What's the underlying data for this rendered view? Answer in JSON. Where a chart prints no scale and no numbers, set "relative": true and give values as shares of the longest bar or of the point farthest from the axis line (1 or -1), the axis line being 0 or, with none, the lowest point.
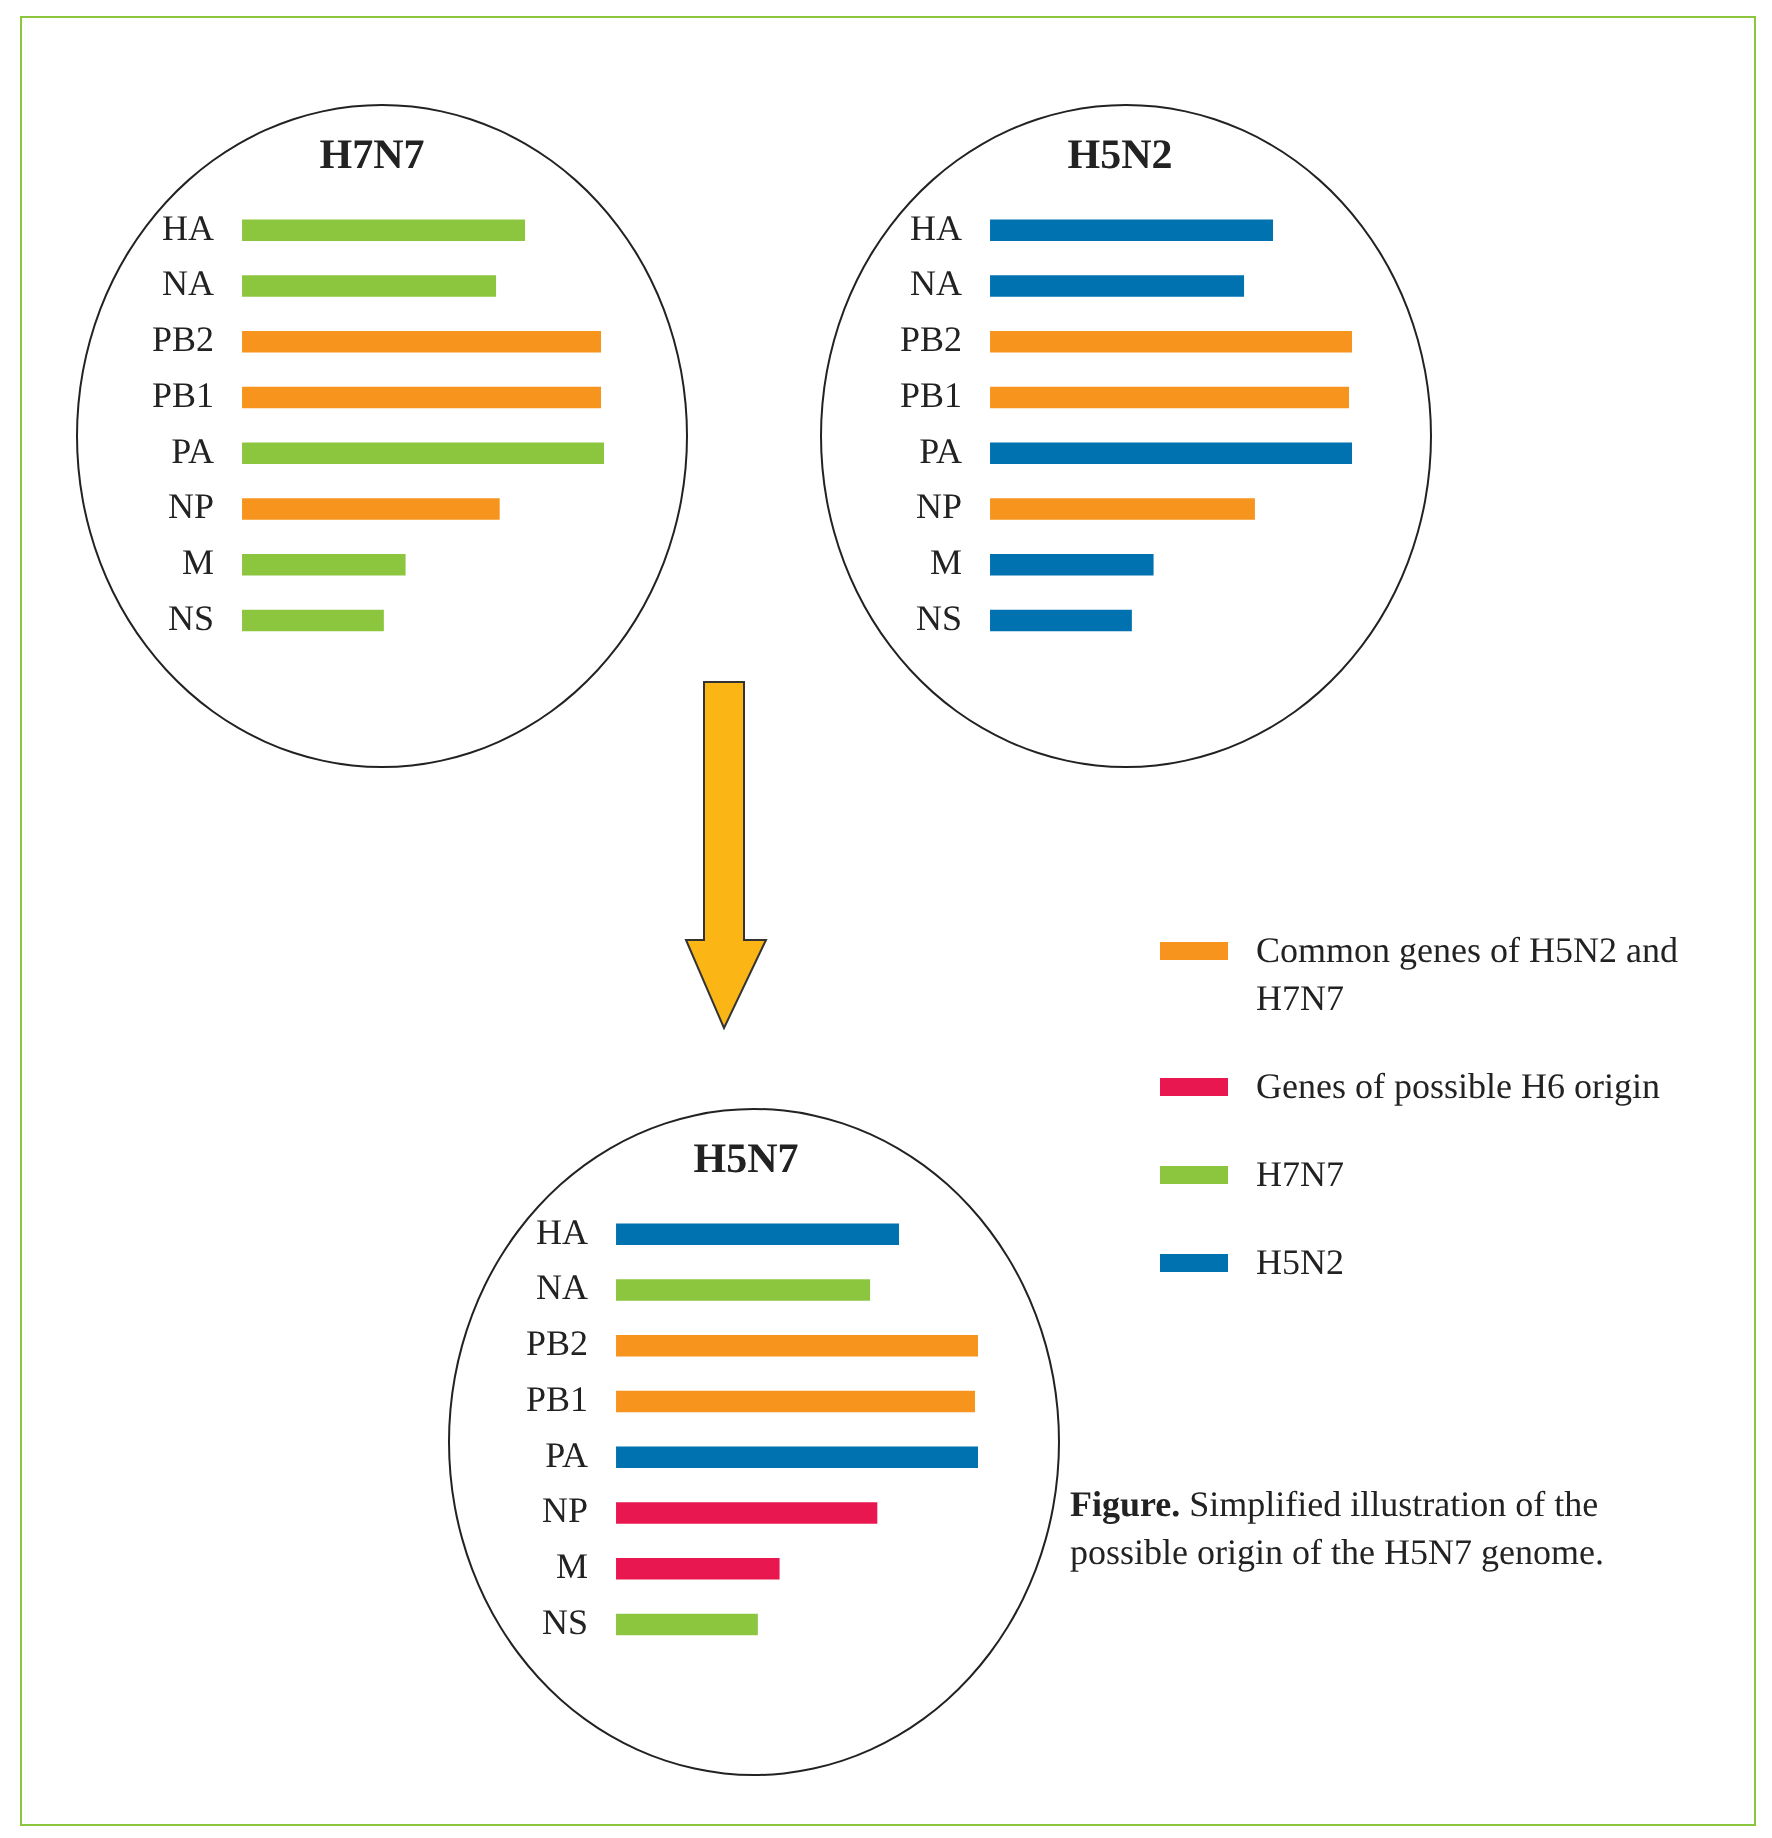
{
  "chart_data": [
    {
      "type": "bar",
      "orientation": "horizontal",
      "relative": true,
      "title": "H7N7",
      "categories": [
        "HA",
        "NA",
        "PB2",
        "PB1",
        "PA",
        "NP",
        "M",
        "NS"
      ],
      "values": [
        0.78,
        0.7,
        0.99,
        0.99,
        1,
        0.71,
        0.45,
        0.39
      ],
      "colors": [
        "#8cc63f",
        "#8cc63f",
        "#f7941d",
        "#f7941d",
        "#8cc63f",
        "#f7941d",
        "#8cc63f",
        "#8cc63f"
      ],
      "legend": false
    },
    {
      "type": "bar",
      "orientation": "horizontal",
      "relative": true,
      "title": "H5N2",
      "categories": [
        "HA",
        "NA",
        "PB2",
        "PB1",
        "PA",
        "NP",
        "M",
        "NS"
      ],
      "values": [
        0.78,
        0.7,
        1,
        0.99,
        1,
        0.73,
        0.45,
        0.39
      ],
      "colors": [
        "#0072b0",
        "#0072b0",
        "#f7941d",
        "#f7941d",
        "#0072b0",
        "#f7941d",
        "#0072b0",
        "#0072b0"
      ],
      "legend": false
    },
    {
      "type": "bar",
      "orientation": "horizontal",
      "relative": true,
      "stacked": true,
      "title": "H5N7",
      "categories": [
        "HA",
        "NA",
        "PB2",
        "PB1",
        "PA",
        "NP",
        "M",
        "NS"
      ],
      "series": [
        {
          "name": "Common genes of H5N2 and H7N7",
          "color": "#f7941d",
          "values": [
            null,
            null,
            1,
            0.99,
            null,
            null,
            null,
            null
          ]
        },
        {
          "name": "Genes of possible H6 origin",
          "color": "#e8174f",
          "values": [
            null,
            null,
            null,
            null,
            null,
            0.72,
            0.45,
            null
          ]
        },
        {
          "name": "H7N7",
          "color": "#8cc63f",
          "values": [
            null,
            0.7,
            null,
            null,
            null,
            null,
            null,
            0.39
          ]
        },
        {
          "name": "H5N2",
          "color": "#0072b0",
          "values": [
            0.78,
            null,
            null,
            null,
            1,
            null,
            null,
            null
          ]
        }
      ],
      "legend": "right",
      "annotations": [
        "Figure. Simplified illustration of the possible origin of the H5N7 genome."
      ]
    }
  ]
}
